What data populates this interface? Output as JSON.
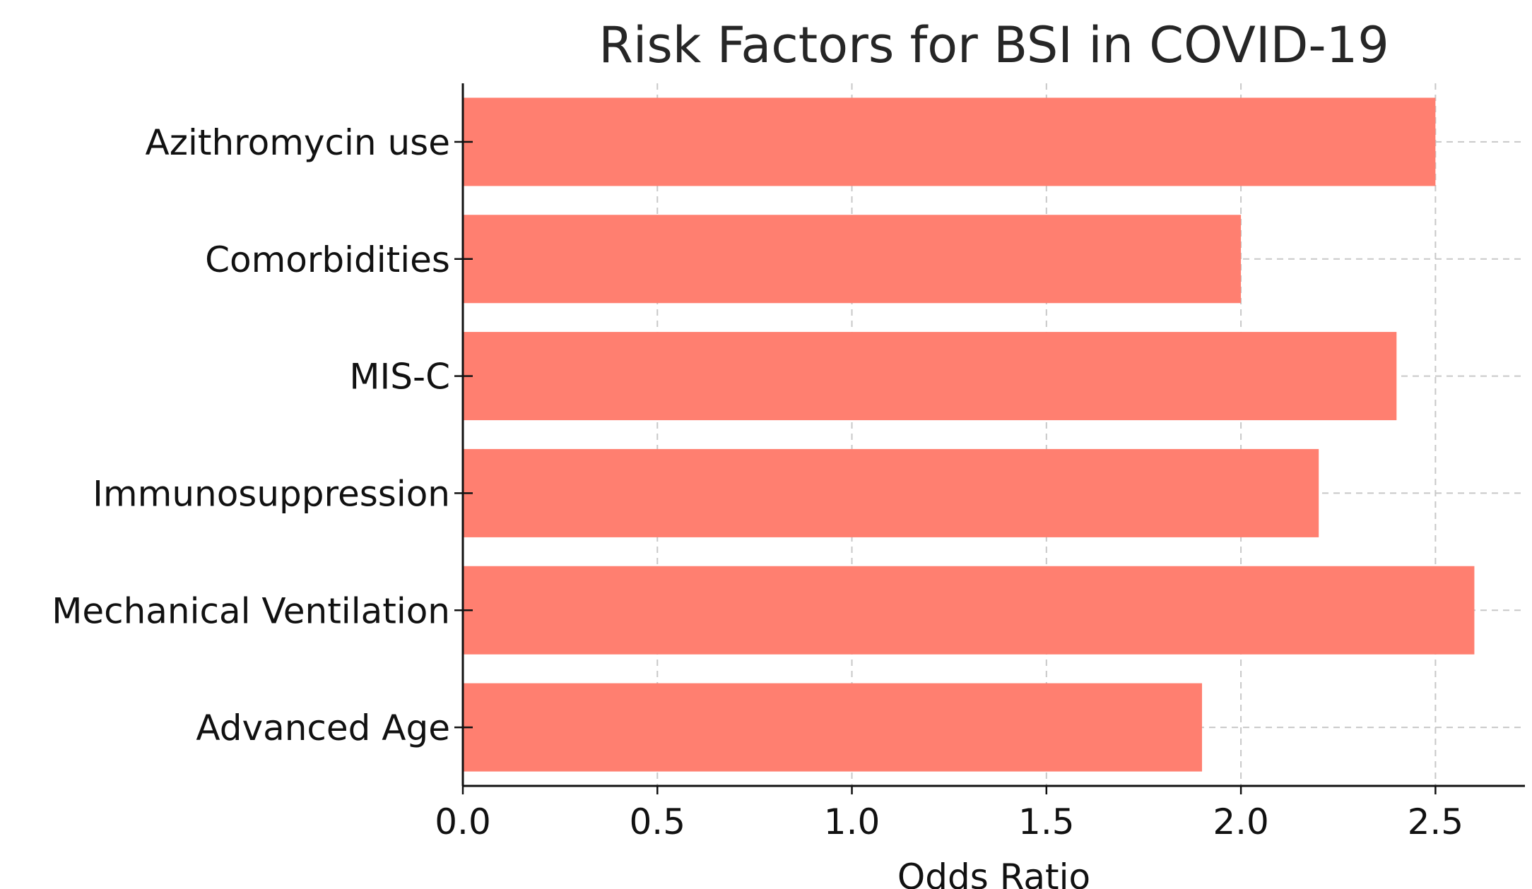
{
  "chart_data": {
    "type": "bar",
    "orientation": "horizontal",
    "title": "Risk Factors for BSI in COVID-19",
    "xlabel": "Odds Ratio",
    "ylabel": "",
    "categories": [
      "Azithromycin use",
      "Comorbidities",
      "MIS-C",
      "Immunosuppression",
      "Mechanical Ventilation",
      "Advanced Age"
    ],
    "values": [
      2.5,
      2.0,
      2.4,
      2.2,
      2.6,
      1.9
    ],
    "xlim": [
      0,
      2.73
    ],
    "xticks": [
      "0.0",
      "0.5",
      "1.0",
      "1.5",
      "2.0",
      "2.5"
    ],
    "grid": true,
    "bar_color": "#FF7F70",
    "grid_color": "#C8C8C8",
    "legend": "none"
  }
}
